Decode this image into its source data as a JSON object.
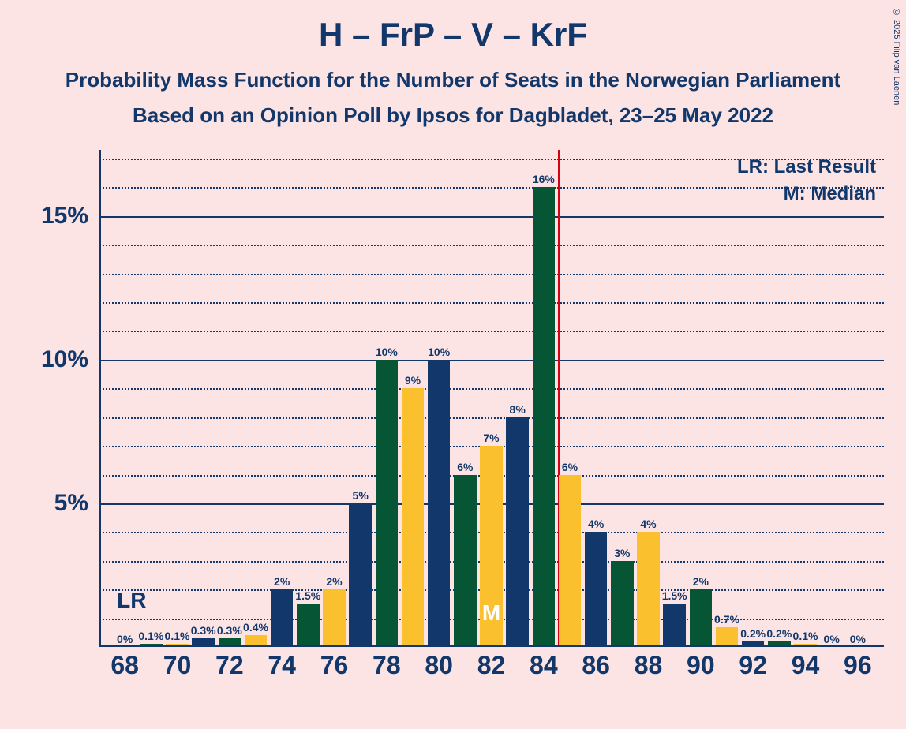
{
  "title": "H – FrP – V – KrF",
  "subtitle1": "Probability Mass Function for the Number of Seats in the Norwegian Parliament",
  "subtitle2": "Based on an Opinion Poll by Ipsos for Dagbladet, 23–25 May 2022",
  "copyright": "© 2025 Filip van Laenen",
  "legend": {
    "lr": "LR: Last Result",
    "m": "M: Median"
  },
  "inline": {
    "lr": "LR",
    "m": "M"
  },
  "chart": {
    "type": "bar",
    "background_color": "#fce4e4",
    "axis_color": "#12376b",
    "grid_minor_color": "#12376b",
    "red_line_color": "#d90012",
    "title_fontsize": 42,
    "subtitle_fontsize": 26,
    "y_tick_fontsize": 30,
    "x_tick_fontsize": 32,
    "bar_label_fontsize": 14,
    "legend_fontsize": 24,
    "lr_fontsize": 28,
    "m_fontsize": 28,
    "copyright_fontsize": 11,
    "ylim": [
      0,
      17.3
    ],
    "y_major_ticks": [
      5,
      10,
      15
    ],
    "y_minor_step": 1,
    "xlim": [
      67,
      97
    ],
    "x_ticks": [
      68,
      70,
      72,
      74,
      76,
      78,
      80,
      82,
      84,
      86,
      88,
      90,
      92,
      94,
      96
    ],
    "bar_width_seats": 0.86,
    "colors_cycle": [
      "#12376b",
      "#065535",
      "#fbc02d"
    ],
    "red_line_at": 84.55,
    "lr_position_seat": 68,
    "median_seat": 82,
    "bars": [
      {
        "seat": 68,
        "pct": 0,
        "label": "0%"
      },
      {
        "seat": 69,
        "pct": 0.1,
        "label": "0.1%"
      },
      {
        "seat": 70,
        "pct": 0.1,
        "label": "0.1%"
      },
      {
        "seat": 71,
        "pct": 0.3,
        "label": "0.3%"
      },
      {
        "seat": 72,
        "pct": 0.3,
        "label": "0.3%"
      },
      {
        "seat": 73,
        "pct": 0.4,
        "label": "0.4%"
      },
      {
        "seat": 74,
        "pct": 2,
        "label": "2%"
      },
      {
        "seat": 75,
        "pct": 1.5,
        "label": "1.5%"
      },
      {
        "seat": 76,
        "pct": 2,
        "label": "2%"
      },
      {
        "seat": 77,
        "pct": 5,
        "label": "5%"
      },
      {
        "seat": 78,
        "pct": 10,
        "label": "10%"
      },
      {
        "seat": 79,
        "pct": 9,
        "label": "9%"
      },
      {
        "seat": 80,
        "pct": 10,
        "label": "10%"
      },
      {
        "seat": 81,
        "pct": 6,
        "label": "6%"
      },
      {
        "seat": 82,
        "pct": 7,
        "label": "7%"
      },
      {
        "seat": 83,
        "pct": 8,
        "label": "8%"
      },
      {
        "seat": 84,
        "pct": 16,
        "label": "16%"
      },
      {
        "seat": 85,
        "pct": 6,
        "label": "6%"
      },
      {
        "seat": 86,
        "pct": 4,
        "label": "4%"
      },
      {
        "seat": 87,
        "pct": 3,
        "label": "3%"
      },
      {
        "seat": 88,
        "pct": 4,
        "label": "4%"
      },
      {
        "seat": 89,
        "pct": 1.5,
        "label": "1.5%"
      },
      {
        "seat": 90,
        "pct": 2,
        "label": "2%"
      },
      {
        "seat": 91,
        "pct": 0.7,
        "label": "0.7%"
      },
      {
        "seat": 92,
        "pct": 0.2,
        "label": "0.2%"
      },
      {
        "seat": 93,
        "pct": 0.2,
        "label": "0.2%"
      },
      {
        "seat": 94,
        "pct": 0.1,
        "label": "0.1%"
      },
      {
        "seat": 95,
        "pct": 0,
        "label": "0%"
      },
      {
        "seat": 96,
        "pct": 0,
        "label": "0%"
      }
    ]
  }
}
